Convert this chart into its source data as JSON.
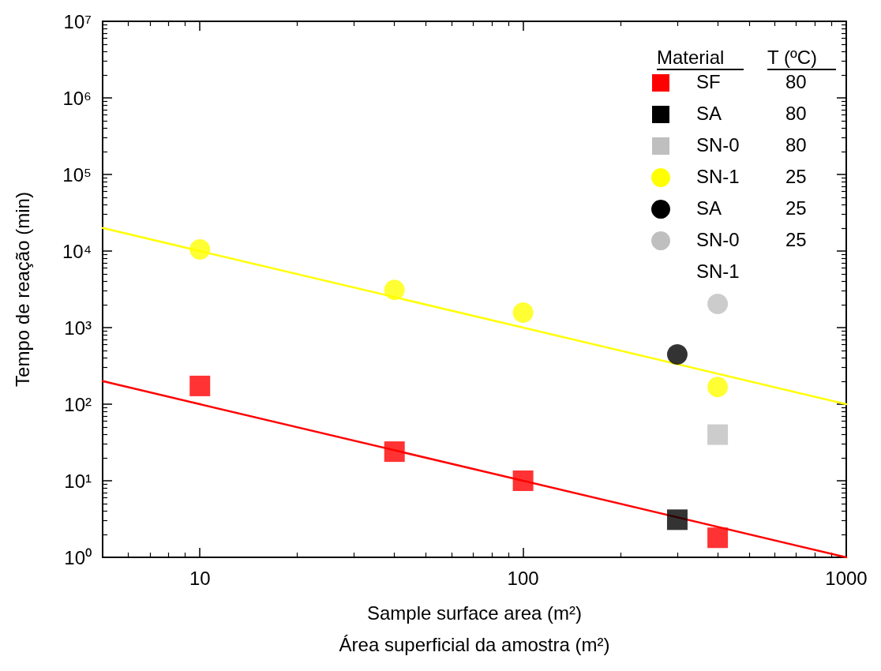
{
  "chart_data": {
    "type": "scatter",
    "xlabel": "Sample surface area (m²)\nÁrea superficial da amostra (m²)",
    "ylabel": "Tempo de reação (min)",
    "log": "xy",
    "grid": false,
    "legend": "top right",
    "legend_title": "Material",
    "xlim": [
      5,
      1000
    ],
    "xticks": [
      {
        "value": 6,
        "label": null
      },
      {
        "value": 7,
        "label": null
      },
      {
        "value": 8,
        "label": null
      },
      {
        "value": 9,
        "label": null
      },
      10,
      {
        "value": 20,
        "label": null
      },
      {
        "value": 30,
        "label": null
      },
      {
        "value": 40,
        "label": null
      },
      {
        "value": 50,
        "label": null
      },
      {
        "value": 60,
        "label": null
      },
      {
        "value": 70,
        "label": null
      },
      {
        "value": 80,
        "label": null
      },
      {
        "value": 90,
        "label": null
      },
      100,
      {
        "value": 200,
        "label": null
      },
      {
        "value": 300,
        "label": null
      },
      {
        "value": 400,
        "label": null
      },
      {
        "value": 500,
        "label": null
      },
      {
        "value": 600,
        "label": null
      },
      {
        "value": 700,
        "label": null
      },
      {
        "value": 800,
        "label": null
      },
      {
        "value": 900,
        "label": null
      },
      1000
    ],
    "ylim": [
      1,
      10000000
    ],
    "yticks": [
      {
        "value": 1,
        "label": "10⁰"
      },
      {
        "value": 2,
        "label": null
      },
      {
        "value": 3,
        "label": null
      },
      {
        "value": 4,
        "label": null
      },
      {
        "value": 5,
        "label": null
      },
      {
        "value": 6,
        "label": null
      },
      {
        "value": 7,
        "label": null
      },
      {
        "value": 8,
        "label": null
      },
      {
        "value": 9,
        "label": null
      },
      {
        "value": 10,
        "label": "10¹"
      },
      {
        "value": 20,
        "label": null
      },
      {
        "value": 30,
        "label": null
      },
      {
        "value": 40,
        "label": null
      },
      {
        "value": 50,
        "label": null
      },
      {
        "value": 60,
        "label": null
      },
      {
        "value": 70,
        "label": null
      },
      {
        "value": 80,
        "label": null
      },
      {
        "value": 90,
        "label": null
      },
      {
        "value": 100,
        "label": "10²"
      },
      {
        "value": 200,
        "label": null
      },
      {
        "value": 300,
        "label": null
      },
      {
        "value": 400,
        "label": null
      },
      {
        "value": 500,
        "label": null
      },
      {
        "value": 600,
        "label": null
      },
      {
        "value": 700,
        "label": null
      },
      {
        "value": 800,
        "label": null
      },
      {
        "value": 900,
        "label": null
      },
      {
        "value": 1000,
        "label": "10³"
      },
      {
        "value": 2000,
        "label": null
      },
      {
        "value": 3000,
        "label": null
      },
      {
        "value": 4000,
        "label": null
      },
      {
        "value": 5000,
        "label": null
      },
      {
        "value": 6000,
        "label": null
      },
      {
        "value": 7000,
        "label": null
      },
      {
        "value": 8000,
        "label": null
      },
      {
        "value": 9000,
        "label": null
      },
      {
        "value": 10000,
        "label": "10⁴"
      },
      {
        "value": 20000,
        "label": null
      },
      {
        "value": 30000,
        "label": null
      },
      {
        "value": 40000,
        "label": null
      },
      {
        "value": 50000,
        "label": null
      },
      {
        "value": 60000,
        "label": null
      },
      {
        "value": 70000,
        "label": null
      },
      {
        "value": 80000,
        "label": null
      },
      {
        "value": 90000,
        "label": null
      },
      {
        "value": 100000,
        "label": "10⁵"
      },
      {
        "value": 200000,
        "label": null
      },
      {
        "value": 300000,
        "label": null
      },
      {
        "value": 400000,
        "label": null
      },
      {
        "value": 500000,
        "label": null
      },
      {
        "value": 600000,
        "label": null
      },
      {
        "value": 700000,
        "label": null
      },
      {
        "value": 800000,
        "label": null
      },
      {
        "value": 900000,
        "label": null
      },
      {
        "value": 1000000,
        "label": "10⁶"
      },
      {
        "value": 2000000,
        "label": null
      },
      {
        "value": 3000000,
        "label": null
      },
      {
        "value": 4000000,
        "label": null
      },
      {
        "value": 5000000,
        "label": null
      },
      {
        "value": 6000000,
        "label": null
      },
      {
        "value": 7000000,
        "label": null
      },
      {
        "value": 8000000,
        "label": null
      },
      {
        "value": 9000000,
        "label": null
      },
      {
        "value": 10000000,
        "label": "10⁷"
      }
    ],
    "annotations": [
      "T (ºC)",
      "80",
      "80",
      "80",
      "25",
      "25",
      "25",
      "SN-1"
    ],
    "series": [
      {
        "name": "SF",
        "color": "#ff0000",
        "marker": "square",
        "x": [
          10,
          40,
          100,
          400
        ],
        "values": [
          173,
          24,
          10,
          1.8
        ]
      },
      {
        "name": "SA",
        "color": "#000000",
        "marker": "square",
        "x": [
          300
        ],
        "values": [
          3.1
        ]
      },
      {
        "name": "SN-0",
        "color": "#bfbfbf",
        "marker": "square",
        "x": [
          400
        ],
        "values": [
          40
        ]
      },
      {
        "name": "SN-1",
        "color": "#ffff00",
        "marker": "circle",
        "x": [
          10,
          40,
          100,
          400
        ],
        "values": [
          10500,
          3100,
          1570,
          168
        ]
      },
      {
        "name": "SA",
        "color": "#000000",
        "marker": "circle",
        "x": [
          300
        ],
        "values": [
          445
        ]
      },
      {
        "name": "SN-0",
        "color": "#bfbfbf",
        "marker": "circle",
        "x": [
          400
        ],
        "values": [
          2040
        ]
      },
      {
        "type": "line",
        "color": "#ffff00",
        "marker": "none",
        "line_style": "solid",
        "x": [
          5,
          1000
        ],
        "values": [
          20000,
          100
        ]
      },
      {
        "type": "line",
        "color": "#ff0000",
        "marker": "none",
        "line_style": "solid",
        "x": [
          5,
          1000
        ],
        "values": [
          200,
          1
        ]
      }
    ]
  }
}
